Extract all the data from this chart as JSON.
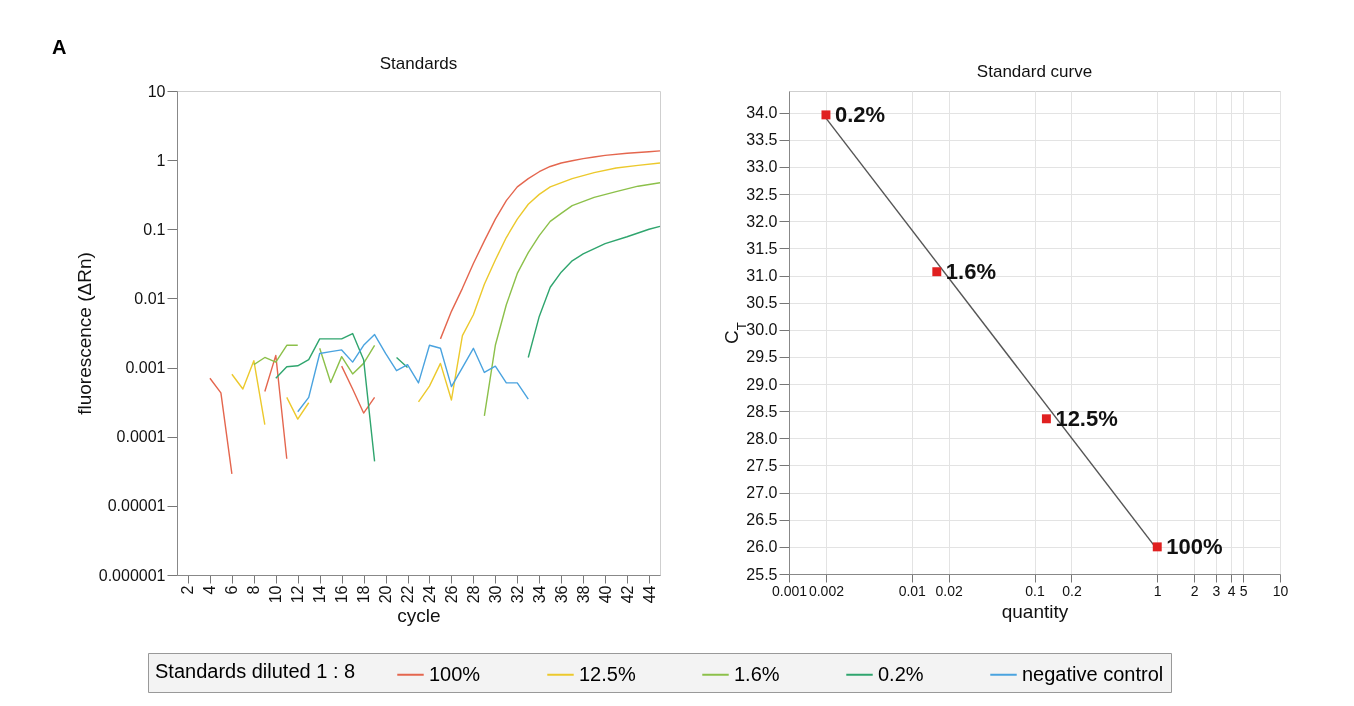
{
  "chart_data": [
    {
      "type": "line",
      "title": "Standards",
      "xlabel": "cycle",
      "ylabel": "fluorescence (ΔRn)",
      "log": "y",
      "xlim": [
        1,
        45
      ],
      "xticks": [
        2,
        4,
        6,
        8,
        10,
        12,
        14,
        16,
        18,
        20,
        22,
        24,
        26,
        28,
        30,
        32,
        34,
        36,
        38,
        40,
        42,
        44
      ],
      "ylim": [
        1e-06,
        10
      ],
      "yticks": [
        {
          "value": 1e-06,
          "label": "0.000001"
        },
        {
          "value": 1e-05,
          "label": "0.00001"
        },
        0.0001,
        0.001,
        0.01,
        0.1,
        1,
        10
      ],
      "grid": false,
      "legend": "bottom",
      "legend_title": "Standards diluted 1 : 8",
      "annotations": [
        "A"
      ],
      "series": [
        {
          "name": "100%",
          "color": "#e4664e",
          "x": [
            4,
            5,
            6,
            7,
            9,
            10,
            11,
            12,
            16,
            17,
            18,
            19,
            20,
            25,
            26,
            27,
            28,
            29,
            30,
            31,
            32,
            33,
            34,
            35,
            36,
            37,
            38,
            39,
            40,
            42,
            44,
            45
          ],
          "values": [
            0.0007,
            0.00043,
            2.9e-05,
            null,
            0.00045,
            0.0015,
            4.8e-05,
            null,
            0.00105,
            0.00049,
            0.00022,
            0.00037,
            null,
            0.0026,
            0.0065,
            0.014,
            0.032,
            0.068,
            0.14,
            0.26,
            0.41,
            0.54,
            0.68,
            0.81,
            0.91,
            0.98,
            1.05,
            1.11,
            1.17,
            1.26,
            1.32,
            1.36
          ]
        },
        {
          "name": "12.5%",
          "color": "#ecc92c",
          "x": [
            6,
            7,
            8,
            9,
            10,
            11,
            12,
            13,
            14,
            23,
            24,
            25,
            26,
            27,
            28,
            29,
            30,
            31,
            32,
            33,
            34,
            35,
            37,
            39,
            41,
            43,
            45
          ],
          "values": [
            0.0008,
            0.00049,
            0.00126,
            0.00015,
            null,
            0.00037,
            0.00018,
            0.00031,
            null,
            0.00032,
            0.00054,
            0.00115,
            0.00034,
            0.0029,
            0.0058,
            0.016,
            0.036,
            0.076,
            0.14,
            0.23,
            0.32,
            0.41,
            0.54,
            0.66,
            0.77,
            0.84,
            0.91
          ]
        },
        {
          "name": "1.6%",
          "color": "#8cc04a",
          "x": [
            8,
            9,
            10,
            11,
            12,
            13,
            14,
            15,
            16,
            17,
            18,
            19,
            20,
            29,
            30,
            31,
            32,
            33,
            34,
            35,
            36,
            37,
            39,
            41,
            43,
            45
          ],
          "values": [
            0.0011,
            0.0014,
            0.0012,
            0.0021,
            0.0021,
            null,
            0.0019,
            0.00061,
            0.00144,
            0.00081,
            0.00115,
            0.0021,
            null,
            0.0002,
            0.0021,
            0.0081,
            0.023,
            0.046,
            0.081,
            0.13,
            0.17,
            0.22,
            0.29,
            0.35,
            0.42,
            0.47
          ]
        },
        {
          "name": "0.2%",
          "color": "#2fa56e",
          "x": [
            10,
            11,
            12,
            13,
            14,
            15,
            16,
            17,
            18,
            19,
            20,
            21,
            22,
            23,
            33,
            34,
            35,
            36,
            37,
            38,
            40,
            42,
            44,
            45
          ],
          "values": [
            0.0007,
            0.00103,
            0.00106,
            0.0013,
            0.0026,
            0.0026,
            0.0026,
            0.0031,
            0.0013,
            4.4e-05,
            null,
            0.0014,
            0.001,
            null,
            0.0014,
            0.0055,
            0.0145,
            0.024,
            0.035,
            0.044,
            0.062,
            0.078,
            0.1,
            0.11
          ]
        },
        {
          "name": "negative control",
          "color": "#4aa3df",
          "x": [
            12,
            13,
            14,
            15,
            16,
            17,
            18,
            19,
            20,
            21,
            22,
            23,
            24,
            25,
            26,
            27,
            28,
            29,
            30,
            31,
            32,
            33
          ],
          "values": [
            0.00023,
            0.00037,
            0.0016,
            0.0017,
            0.0018,
            0.0012,
            0.0021,
            0.003,
            0.0016,
            0.0009,
            0.0011,
            0.0006,
            0.0021,
            0.0019,
            0.00053,
            0.001,
            0.0019,
            0.00085,
            0.00105,
            0.0006,
            0.0006,
            0.00035
          ]
        }
      ]
    },
    {
      "type": "scatter",
      "title": "Standard curve",
      "xlabel": "quantity",
      "ylabel": "C$_{T}$",
      "log": "x",
      "xlim": [
        0.001,
        10
      ],
      "xticks": [
        0.001,
        0.002,
        0.01,
        0.02,
        0.1,
        0.2,
        1,
        2,
        3,
        4,
        5,
        10
      ],
      "ylim": [
        25.5,
        34.4
      ],
      "yticks": [
        25.5,
        {
          "value": 26,
          "label": "26.0"
        },
        26.5,
        {
          "value": 27,
          "label": "27.0"
        },
        27.5,
        {
          "value": 28,
          "label": "28.0"
        },
        28.5,
        {
          "value": 29,
          "label": "29.0"
        },
        29.5,
        {
          "value": 30,
          "label": "30.0"
        },
        30.5,
        {
          "value": 31,
          "label": "31.0"
        },
        31.5,
        {
          "value": 32,
          "label": "32.0"
        },
        32.5,
        {
          "value": 33,
          "label": "33.0"
        },
        33.5,
        {
          "value": 34,
          "label": "34.0"
        }
      ],
      "grid": true,
      "annotations": [
        {
          "text": "0.2%",
          "x": 0.002,
          "y": 33.96
        },
        {
          "text": "1.6%",
          "x": 0.016,
          "y": 31.07
        },
        {
          "text": "12.5%",
          "x": 0.125,
          "y": 28.36
        },
        {
          "text": "100%",
          "x": 1,
          "y": 26.0
        }
      ],
      "series": [
        {
          "type": "line",
          "color": "#555555",
          "x": [
            0.002,
            1
          ],
          "values": [
            33.9,
            25.95
          ]
        },
        {
          "type": "scatter",
          "marker": "square",
          "color": "#e02020",
          "x": [
            0.002,
            0.016,
            0.125,
            1
          ],
          "values": [
            33.96,
            31.07,
            28.36,
            26.0
          ]
        }
      ]
    }
  ]
}
